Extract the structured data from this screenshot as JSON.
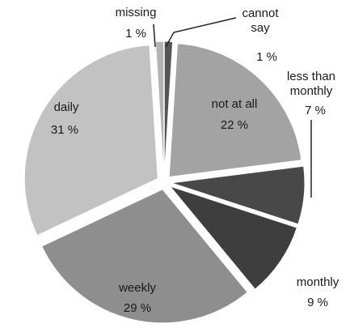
{
  "chart_data": {
    "type": "pie",
    "categories": [
      "cannot say",
      "not at all",
      "less than monthly",
      "monthly",
      "weekly",
      "daily",
      "missing"
    ],
    "values": [
      1,
      22,
      7,
      9,
      29,
      31,
      1
    ],
    "value_labels": [
      "1 %",
      "22 %",
      "7 %",
      "9 %",
      "29 %",
      "31 %",
      "1 %"
    ],
    "colors": [
      "#555555",
      "#a3a3a3",
      "#484848",
      "#3e3e3e",
      "#8e8e8e",
      "#c2c2c2",
      "#b4b4b4"
    ]
  }
}
